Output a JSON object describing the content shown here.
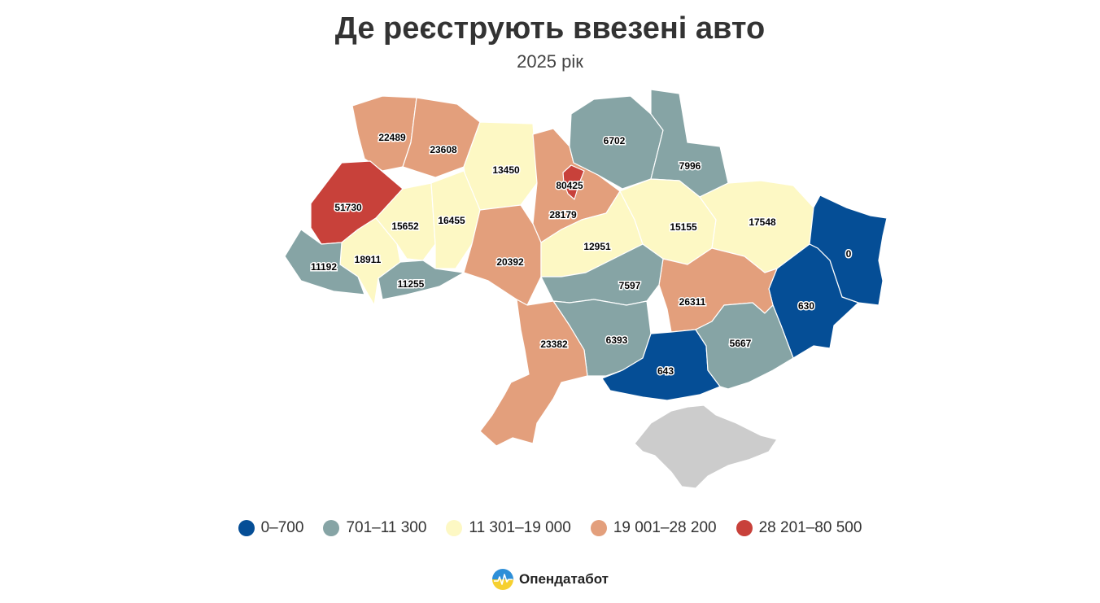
{
  "header": {
    "title": "Де реєструють ввезені авто",
    "subtitle": "2025 рік"
  },
  "map_data": {
    "regions": [
      {
        "value": 22489,
        "color": "#e39f7c"
      },
      {
        "value": 23608,
        "color": "#e39f7c"
      },
      {
        "value": 13450,
        "color": "#fdf8c4"
      },
      {
        "value": 28179,
        "color": "#e39f7c"
      },
      {
        "value": 80425,
        "color": "#c8413a"
      },
      {
        "value": 6702,
        "color": "#86a4a5"
      },
      {
        "value": 7996,
        "color": "#86a4a5"
      },
      {
        "value": 51730,
        "color": "#c8413a"
      },
      {
        "value": 15652,
        "color": "#fdf8c4"
      },
      {
        "value": 16455,
        "color": "#fdf8c4"
      },
      {
        "value": 18911,
        "color": "#fdf8c4"
      },
      {
        "value": 11192,
        "color": "#86a4a5"
      },
      {
        "value": 11255,
        "color": "#86a4a5"
      },
      {
        "value": 20392,
        "color": "#e39f7c"
      },
      {
        "value": 12951,
        "color": "#fdf8c4"
      },
      {
        "value": 15155,
        "color": "#fdf8c4"
      },
      {
        "value": 17548,
        "color": "#fdf8c4"
      },
      {
        "value": 0,
        "color": "#054e96"
      },
      {
        "value": 630,
        "color": "#054e96"
      },
      {
        "value": 26311,
        "color": "#e39f7c"
      },
      {
        "value": 7597,
        "color": "#86a4a5"
      },
      {
        "value": 6393,
        "color": "#86a4a5"
      },
      {
        "value": 23382,
        "color": "#e39f7c"
      },
      {
        "value": 643,
        "color": "#054e96"
      },
      {
        "value": 5667,
        "color": "#86a4a5"
      }
    ],
    "no_data_color": "#cccccc"
  },
  "legend": {
    "items": [
      {
        "label": "0–700",
        "color": "#054e96"
      },
      {
        "label": "701–11 300",
        "color": "#86a4a5"
      },
      {
        "label": "11 301–19 000",
        "color": "#fdf8c4"
      },
      {
        "label": "19 001–28 200",
        "color": "#e39f7c"
      },
      {
        "label": "28 201–80 500",
        "color": "#c8413a"
      }
    ]
  },
  "brand": {
    "name": "Опендатабот",
    "icon": "opendatabot-logo-icon",
    "colors": [
      "#2e8fd8",
      "#f6d02f"
    ]
  }
}
